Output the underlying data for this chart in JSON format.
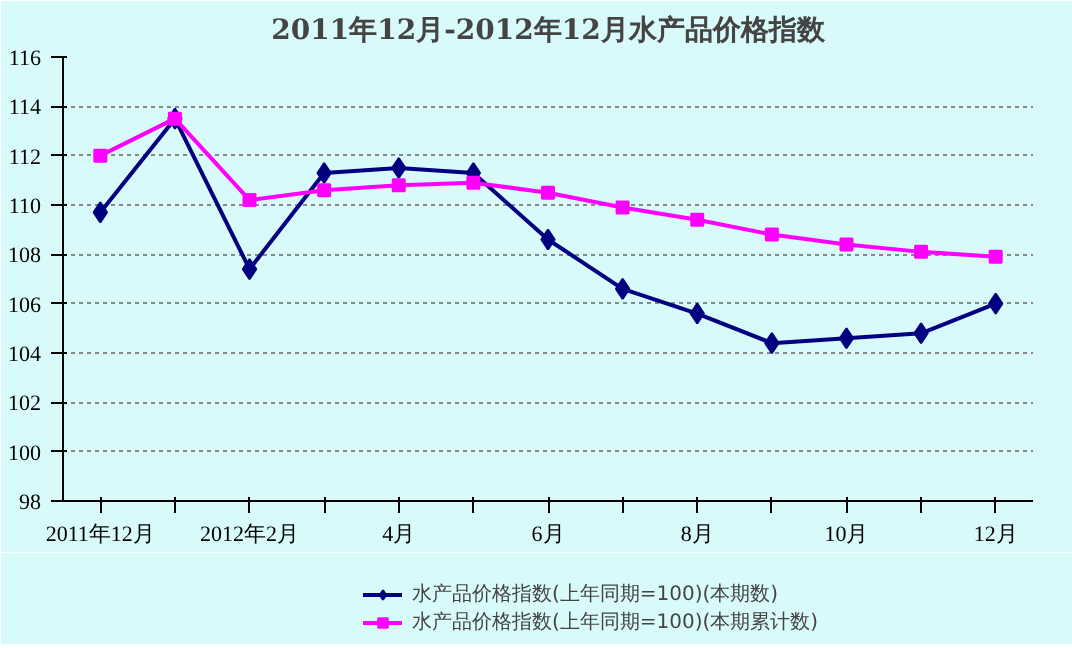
{
  "chart_data": {
    "type": "line",
    "title": "2011年12月-2012年12月水产品价格指数",
    "categories": [
      "2011年12月",
      null,
      "2012年2月",
      null,
      "4月",
      null,
      "6月",
      null,
      "8月",
      null,
      "10月",
      null,
      "12月"
    ],
    "series": [
      {
        "name": "水产品价格指数(上年同期=100)(本期数)",
        "color": "#000080",
        "marker": "diamond",
        "values": [
          109.7,
          113.5,
          107.4,
          111.3,
          111.5,
          111.3,
          108.6,
          106.6,
          105.6,
          104.4,
          104.6,
          104.8,
          106.0
        ]
      },
      {
        "name": "水产品价格指数(上年同期=100)(本期累计数)",
        "color": "#ff00ff",
        "marker": "square",
        "values": [
          112.0,
          113.5,
          110.2,
          110.6,
          110.8,
          110.9,
          110.5,
          109.9,
          109.4,
          108.8,
          108.4,
          108.1,
          107.9
        ]
      }
    ],
    "ylim": [
      98,
      116
    ],
    "yticks": [
      98,
      100,
      102,
      104,
      106,
      108,
      110,
      112,
      114,
      116
    ],
    "grid": "y",
    "legend": "bottom"
  }
}
